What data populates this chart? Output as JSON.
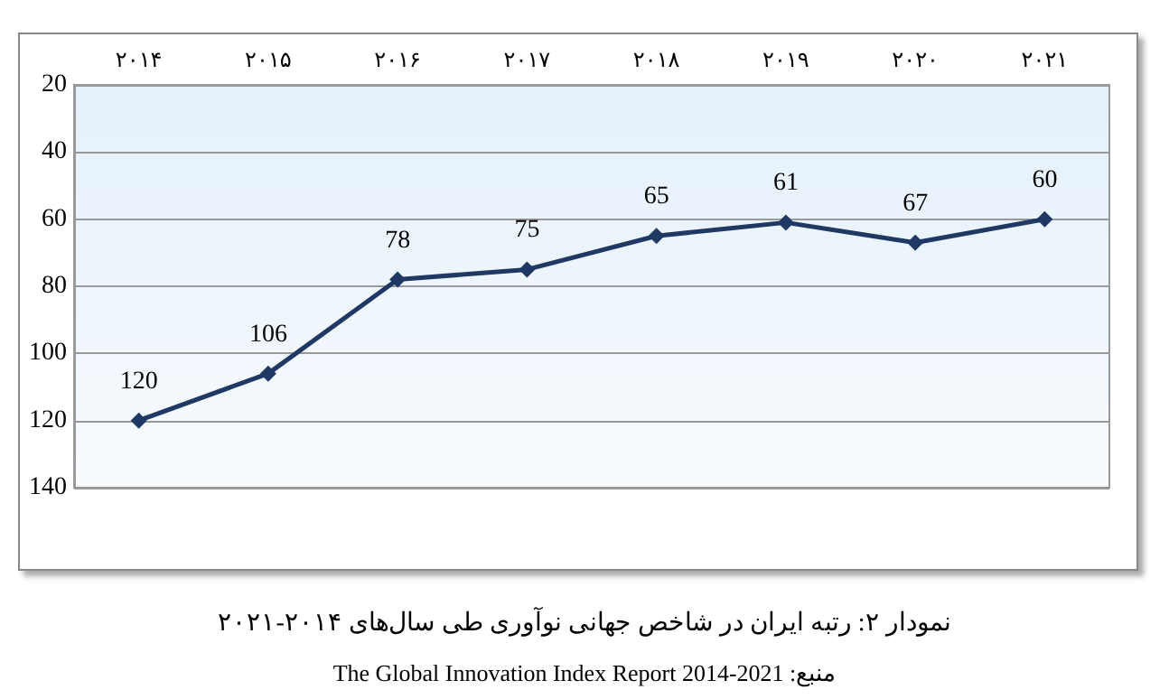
{
  "chart_data": {
    "type": "line",
    "title": "نمودار ۲: رتبه ایران در شاخص جهانی نوآوری طی سال‌های ۲۰۱۴-۲۰۲۱",
    "annotations": [
      "منبع: The Global Innovation Index Report 2014-2021"
    ],
    "categories": [
      "۲۰۱۴",
      "۲۰۱۵",
      "۲۰۱۶",
      "۲۰۱۷",
      "۲۰۱۸",
      "۲۰۱۹",
      "۲۰۲۰",
      "۲۰۲۱"
    ],
    "series": [
      {
        "color": "#1f3864",
        "values": [
          120,
          106,
          78,
          75,
          65,
          61,
          67,
          60
        ]
      }
    ],
    "ylim": [
      140,
      20
    ],
    "yticks": [
      20,
      40,
      60,
      80,
      100,
      120,
      140
    ],
    "grid": "y",
    "marker": "diamond",
    "line_style": "solid",
    "data_labels": true
  }
}
